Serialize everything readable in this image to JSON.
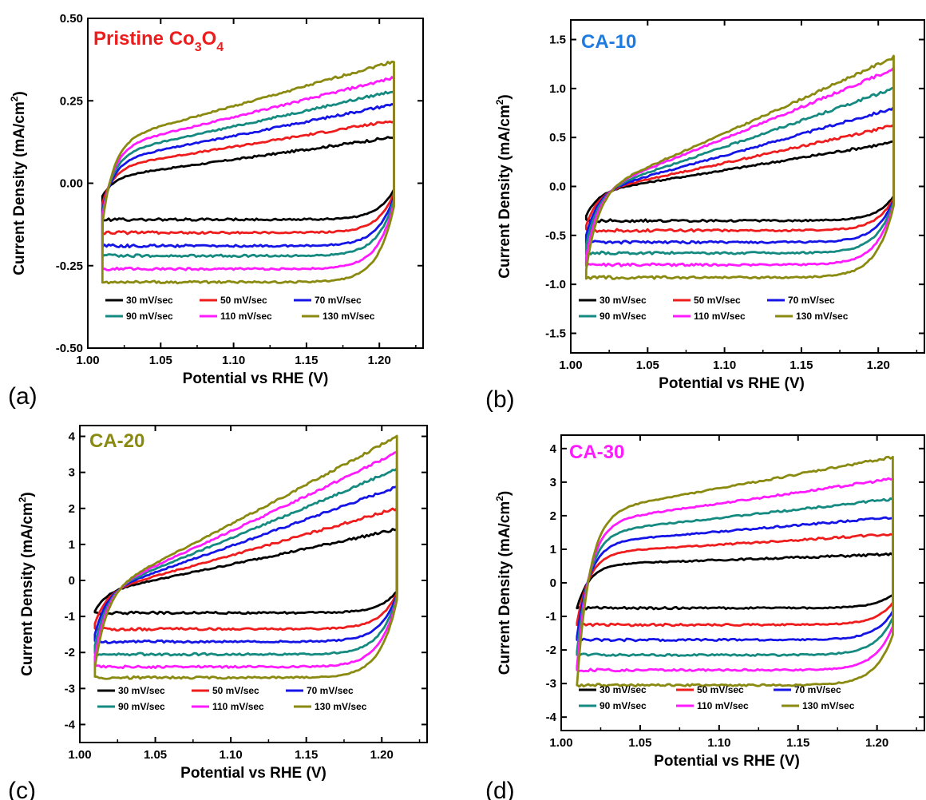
{
  "colors": {
    "30": "#000000",
    "50": "#ee1c1c",
    "70": "#1414e6",
    "90": "#148a80",
    "110": "#ff1aff",
    "130": "#8a8a10"
  },
  "chart_data": [
    {
      "type": "line",
      "panel_letter": "(a)",
      "title": "Pristine Co3O4",
      "title_main": "Pristine Co",
      "title_sub1": "3",
      "title_mid": "O",
      "title_sub2": "4",
      "title_color": "#ee1c1c",
      "xlabel": "Potential vs RHE (V)",
      "ylabel": "Current Density (mA/cm2)",
      "xlim": [
        1.0,
        1.23
      ],
      "ylim": [
        -0.5,
        0.5
      ],
      "xticks": [
        "1.00",
        "1.05",
        "1.10",
        "1.15",
        "1.20"
      ],
      "yticks": [
        "-0.50",
        "-0.25",
        "0.00",
        "0.25",
        "0.50"
      ],
      "x_range": [
        1.01,
        1.21
      ],
      "series": [
        {
          "name": "30 mV/sec",
          "color_key": "30",
          "anodic": [
            0.02,
            0.14
          ],
          "cathodic": [
            -0.11,
            -0.02
          ],
          "tail_low": -0.04,
          "hi_end": 0.13
        },
        {
          "name": "50 mV/sec",
          "color_key": "50",
          "anodic": [
            0.05,
            0.19
          ],
          "cathodic": [
            -0.15,
            -0.03
          ],
          "tail_low": -0.06,
          "hi_end": 0.18
        },
        {
          "name": "70 mV/sec",
          "color_key": "70",
          "anodic": [
            0.07,
            0.24
          ],
          "cathodic": [
            -0.19,
            -0.04
          ],
          "tail_low": -0.08,
          "hi_end": 0.23
        },
        {
          "name": "90 mV/sec",
          "color_key": "90",
          "anodic": [
            0.09,
            0.28
          ],
          "cathodic": [
            -0.22,
            -0.05
          ],
          "tail_low": -0.09,
          "hi_end": 0.27
        },
        {
          "name": "110 mV/sec",
          "color_key": "110",
          "anodic": [
            0.11,
            0.32
          ],
          "cathodic": [
            -0.26,
            -0.06
          ],
          "tail_low": -0.1,
          "hi_end": 0.31
        },
        {
          "name": "130 mV/sec",
          "color_key": "130",
          "anodic": [
            0.13,
            0.37
          ],
          "cathodic": [
            -0.3,
            -0.07
          ],
          "tail_low": -0.12,
          "hi_end": 0.36
        }
      ]
    },
    {
      "type": "line",
      "panel_letter": "(b)",
      "title": "CA-10",
      "title_main": "CA-10",
      "title_color": "#1e7be0",
      "xlabel": "Potential vs RHE (V)",
      "ylabel": "Current Density (mA/cm2)",
      "xlim": [
        1.0,
        1.23
      ],
      "ylim": [
        -1.7,
        1.7
      ],
      "xticks": [
        "1.00",
        "1.05",
        "1.10",
        "1.15",
        "1.20"
      ],
      "yticks": [
        "-1.5",
        "-1.0",
        "-0.5",
        "0.0",
        "0.5",
        "1.0",
        "1.5"
      ],
      "x_range": [
        1.01,
        1.21
      ],
      "series": [
        {
          "name": "30 mV/sec",
          "color_key": "30",
          "anodic": [
            -0.05,
            0.45
          ],
          "cathodic": [
            -0.35,
            -0.1
          ],
          "tail_low": -0.3,
          "hi_end": 0.45
        },
        {
          "name": "50 mV/sec",
          "color_key": "50",
          "anodic": [
            -0.05,
            0.62
          ],
          "cathodic": [
            -0.45,
            -0.12
          ],
          "tail_low": -0.4,
          "hi_end": 0.62
        },
        {
          "name": "70 mV/sec",
          "color_key": "70",
          "anodic": [
            -0.05,
            0.8
          ],
          "cathodic": [
            -0.57,
            -0.14
          ],
          "tail_low": -0.5,
          "hi_end": 0.8
        },
        {
          "name": "90 mV/sec",
          "color_key": "90",
          "anodic": [
            -0.05,
            1.0
          ],
          "cathodic": [
            -0.68,
            -0.16
          ],
          "tail_low": -0.6,
          "hi_end": 1.0
        },
        {
          "name": "110 mV/sec",
          "color_key": "110",
          "anodic": [
            -0.05,
            1.2
          ],
          "cathodic": [
            -0.8,
            -0.18
          ],
          "tail_low": -0.72,
          "hi_end": 1.2
        },
        {
          "name": "130 mV/sec",
          "color_key": "130",
          "anodic": [
            -0.05,
            1.32
          ],
          "cathodic": [
            -0.93,
            -0.2
          ],
          "tail_low": -0.85,
          "hi_end": 1.32
        }
      ]
    },
    {
      "type": "line",
      "panel_letter": "(c)",
      "title": "CA-20",
      "title_main": "CA-20",
      "title_color": "#8a8a10",
      "xlabel": "Potential vs RHE (V)",
      "ylabel": "Current Density (mA/cm2)",
      "xlim": [
        1.0,
        1.23
      ],
      "ylim": [
        -4.5,
        4.3
      ],
      "xticks": [
        "1.00",
        "1.05",
        "1.10",
        "1.15",
        "1.20"
      ],
      "yticks": [
        "-4",
        "-3",
        "-2",
        "-1",
        "0",
        "1",
        "2",
        "3",
        "4"
      ],
      "x_range": [
        1.01,
        1.21
      ],
      "series": [
        {
          "name": "30 mV/sec",
          "color_key": "30",
          "anodic": [
            -0.3,
            1.42
          ],
          "cathodic": [
            -0.9,
            -0.3
          ],
          "tail_low": -0.85,
          "hi_end": 1.42
        },
        {
          "name": "50 mV/sec",
          "color_key": "50",
          "anodic": [
            -0.3,
            2.0
          ],
          "cathodic": [
            -1.35,
            -0.35
          ],
          "tail_low": -1.2,
          "hi_end": 2.0
        },
        {
          "name": "70 mV/sec",
          "color_key": "70",
          "anodic": [
            -0.3,
            2.6
          ],
          "cathodic": [
            -1.7,
            -0.4
          ],
          "tail_low": -1.5,
          "hi_end": 2.6
        },
        {
          "name": "90 mV/sec",
          "color_key": "90",
          "anodic": [
            -0.3,
            3.1
          ],
          "cathodic": [
            -2.05,
            -0.45
          ],
          "tail_low": -1.8,
          "hi_end": 3.1
        },
        {
          "name": "110 mV/sec",
          "color_key": "110",
          "anodic": [
            -0.3,
            3.55
          ],
          "cathodic": [
            -2.4,
            -0.5
          ],
          "tail_low": -2.1,
          "hi_end": 3.55
        },
        {
          "name": "130 mV/sec",
          "color_key": "130",
          "anodic": [
            -0.3,
            4.0
          ],
          "cathodic": [
            -2.7,
            -0.55
          ],
          "tail_low": -2.4,
          "hi_end": 4.0
        }
      ]
    },
    {
      "type": "line",
      "panel_letter": "(d)",
      "title": "CA-30",
      "title_main": "CA-30",
      "title_color": "#ff1aff",
      "xlabel": "Potential vs RHE (V)",
      "ylabel": "Current Density (mA/cm2)",
      "xlim": [
        1.0,
        1.23
      ],
      "ylim": [
        -4.4,
        4.4
      ],
      "xticks": [
        "1.00",
        "1.05",
        "1.10",
        "1.15",
        "1.20"
      ],
      "yticks": [
        "-4",
        "-3",
        "-2",
        "-1",
        "0",
        "1",
        "2",
        "3",
        "4"
      ],
      "x_range": [
        1.01,
        1.21
      ],
      "series": [
        {
          "name": "30 mV/sec",
          "color_key": "30",
          "anodic": [
            0.55,
            0.85
          ],
          "cathodic": [
            -0.75,
            -0.35
          ],
          "tail_low": -0.75,
          "hi_end": 0.85
        },
        {
          "name": "50 mV/sec",
          "color_key": "50",
          "anodic": [
            0.9,
            1.45
          ],
          "cathodic": [
            -1.25,
            -0.6
          ],
          "tail_low": -1.2,
          "hi_end": 1.45
        },
        {
          "name": "70 mV/sec",
          "color_key": "70",
          "anodic": [
            1.2,
            1.95
          ],
          "cathodic": [
            -1.7,
            -0.85
          ],
          "tail_low": -1.6,
          "hi_end": 1.95
        },
        {
          "name": "90 mV/sec",
          "color_key": "90",
          "anodic": [
            1.5,
            2.5
          ],
          "cathodic": [
            -2.15,
            -1.05
          ],
          "tail_low": -2.05,
          "hi_end": 2.5
        },
        {
          "name": "110 mV/sec",
          "color_key": "110",
          "anodic": [
            1.8,
            3.1
          ],
          "cathodic": [
            -2.6,
            -1.3
          ],
          "tail_low": -2.5,
          "hi_end": 3.1
        },
        {
          "name": "130 mV/sec",
          "color_key": "130",
          "anodic": [
            2.1,
            3.75
          ],
          "cathodic": [
            -3.05,
            -1.55
          ],
          "tail_low": -3.05,
          "hi_end": 3.75
        }
      ]
    }
  ]
}
